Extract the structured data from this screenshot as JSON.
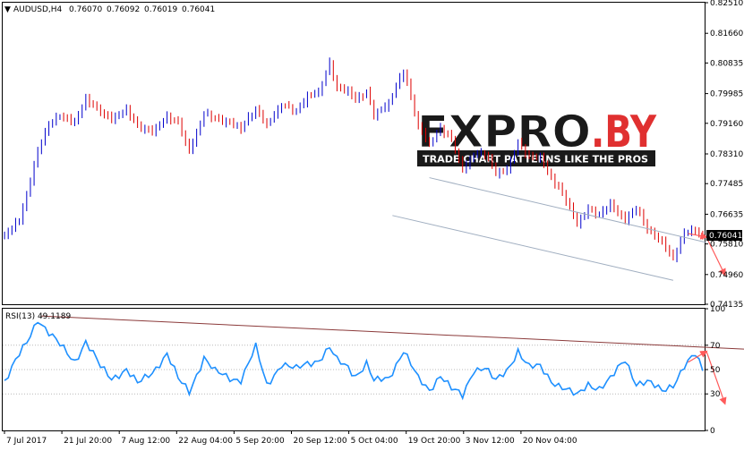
{
  "window": {
    "title": "AUDUSD,H4",
    "ohlc": [
      "0.76070",
      "0.76092",
      "0.76019",
      "0.76041"
    ],
    "last_price": "0.76041"
  },
  "watermark": {
    "brand_left": "FXPRO",
    "brand_right": ".BY",
    "tagline": "TRADE CHART PATTERNS LIKE THE PROS"
  },
  "rsi": {
    "label": "RSI(13) 49.1189",
    "levels": [
      "100",
      "70",
      "50",
      "30",
      "0"
    ]
  },
  "colors": {
    "bull": "#0000cc",
    "bear": "#dd0000",
    "rsi_line": "#1e90ff",
    "channel": "#a0aec0",
    "trendline": "#8b3a3a",
    "arrow": "#ff5a5a",
    "brand_red": "#e03030",
    "brand_dark": "#1a1a1a"
  },
  "chart_data": [
    {
      "type": "line",
      "title": "AUDUSD,H4",
      "x_tick_labels": [
        "7 Jul 2017",
        "21 Jul 20:00",
        "7 Aug 12:00",
        "22 Aug 04:00",
        "5 Sep 20:00",
        "20 Sep 12:00",
        "5 Oct 04:00",
        "19 Oct 20:00",
        "3 Nov 12:00",
        "20 Nov 04:00"
      ],
      "y_tick_labels": [
        "0.82510",
        "0.81660",
        "0.80835",
        "0.79985",
        "0.79160",
        "0.78310",
        "0.77485",
        "0.76635",
        "0.75810",
        "0.74960",
        "0.74135"
      ],
      "ylim": [
        0.74135,
        0.8251
      ],
      "anchor_index": [
        0,
        4,
        6,
        9,
        12,
        15,
        19,
        22,
        26,
        29,
        33,
        36,
        40,
        44,
        47,
        50,
        54,
        57,
        61,
        64,
        68,
        71,
        75,
        79,
        82,
        85,
        88,
        90,
        93,
        95,
        98,
        100,
        104,
        108,
        112,
        115,
        118,
        121,
        124,
        127,
        130,
        133,
        136,
        139,
        142,
        145,
        148,
        151,
        155,
        158,
        161,
        164,
        168,
        171,
        174,
        178,
        181,
        184,
        187,
        189
      ],
      "close": [
        0.76,
        0.765,
        0.772,
        0.784,
        0.791,
        0.794,
        0.792,
        0.798,
        0.795,
        0.793,
        0.795,
        0.791,
        0.7895,
        0.793,
        0.792,
        0.784,
        0.794,
        0.793,
        0.792,
        0.79,
        0.7955,
        0.7915,
        0.7965,
        0.795,
        0.7995,
        0.8,
        0.808,
        0.8015,
        0.801,
        0.798,
        0.8,
        0.794,
        0.7975,
        0.806,
        0.791,
        0.786,
        0.79,
        0.787,
        0.779,
        0.783,
        0.783,
        0.778,
        0.779,
        0.786,
        0.782,
        0.7825,
        0.7765,
        0.772,
        0.764,
        0.768,
        0.766,
        0.769,
        0.765,
        0.768,
        0.762,
        0.759,
        0.754,
        0.761,
        0.762,
        0.7604
      ],
      "channel_upper": [
        {
          "x": 115,
          "y": 0.7765
        },
        {
          "x": 190,
          "y": 0.7585
        }
      ],
      "channel_lower": [
        {
          "x": 105,
          "y": 0.766
        },
        {
          "x": 181,
          "y": 0.748
        }
      ],
      "forecast_arrows": [
        {
          "from": [
            185,
            0.761
          ],
          "to": [
            190,
            0.76
          ]
        },
        {
          "from": [
            190,
            0.76
          ],
          "to": [
            195,
            0.7495
          ]
        }
      ]
    },
    {
      "type": "line",
      "title": "RSI(13) 49.1189",
      "ylim": [
        0,
        100
      ],
      "levels": [
        30,
        50,
        70
      ],
      "anchor_index": [
        0,
        4,
        6,
        9,
        12,
        15,
        19,
        22,
        26,
        29,
        33,
        36,
        40,
        44,
        47,
        50,
        54,
        57,
        61,
        64,
        68,
        71,
        75,
        79,
        82,
        85,
        88,
        90,
        93,
        95,
        98,
        100,
        104,
        108,
        112,
        115,
        118,
        121,
        124,
        127,
        130,
        133,
        136,
        139,
        142,
        145,
        148,
        151,
        155,
        158,
        161,
        164,
        168,
        171,
        174,
        178,
        181,
        184,
        187,
        189
      ],
      "values": [
        40,
        62,
        72,
        92,
        80,
        70,
        57,
        73,
        52,
        43,
        50,
        38,
        48,
        63,
        42,
        32,
        60,
        48,
        43,
        42,
        68,
        37,
        55,
        50,
        55,
        58,
        68,
        57,
        52,
        45,
        55,
        40,
        43,
        66,
        42,
        33,
        46,
        34,
        28,
        50,
        52,
        40,
        49,
        66,
        52,
        52,
        41,
        36,
        28,
        38,
        35,
        42,
        58,
        39,
        40,
        32,
        38,
        53,
        62,
        49
      ],
      "trendline": [
        {
          "x": 10,
          "y": 94
        },
        {
          "x": 220,
          "y": 64
        }
      ],
      "forecast_arrows": [
        {
          "from": [
            185,
            56
          ],
          "to": [
            190,
            65
          ]
        },
        {
          "from": [
            190,
            65
          ],
          "to": [
            195,
            22
          ]
        }
      ]
    }
  ]
}
